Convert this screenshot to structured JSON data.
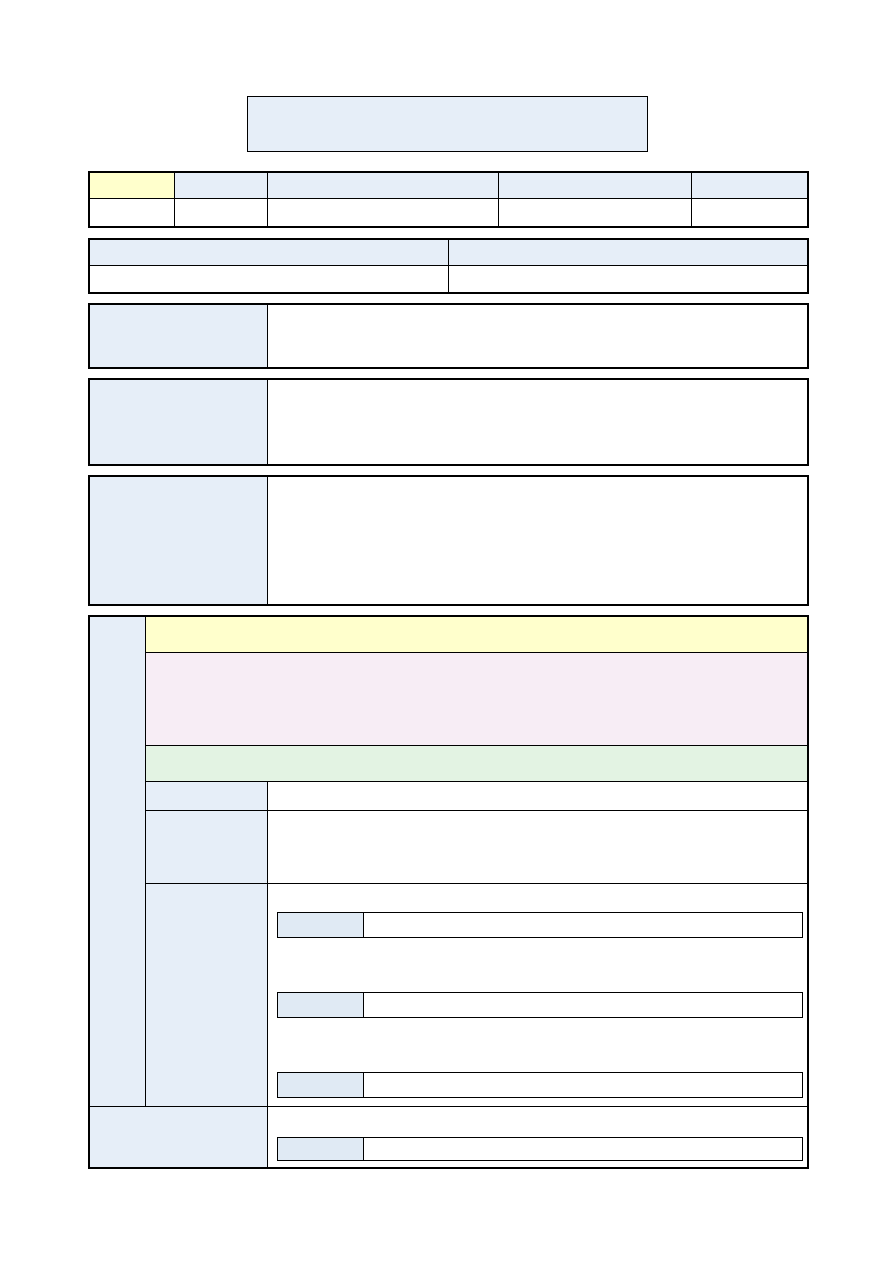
{
  "colors": {
    "label_fill": "#e6eef8",
    "highlight_yellow": "#ffffcc",
    "pink_fill": "#f7edf5",
    "green_fill": "#e3f3e3",
    "inner_label_fill": "#e0eaf4",
    "border": "#000000"
  }
}
